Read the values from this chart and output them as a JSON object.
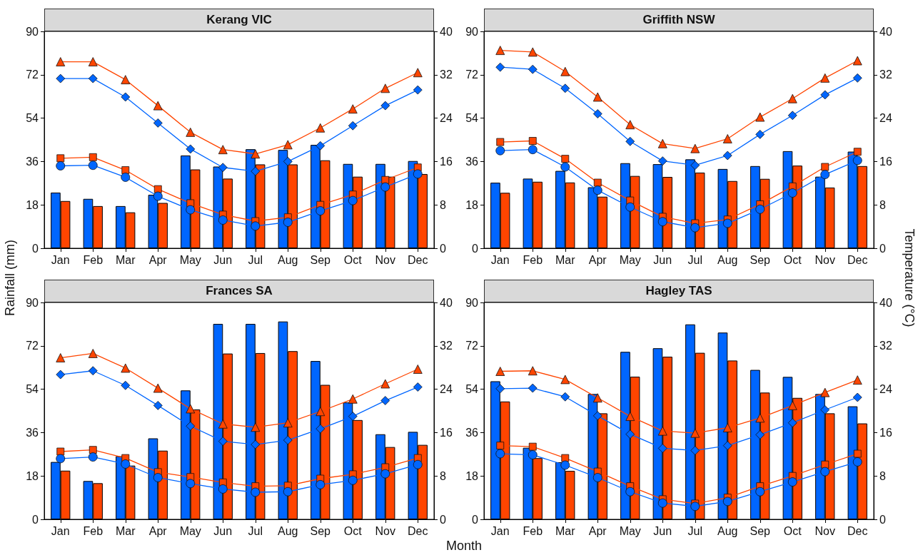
{
  "chart_data": [
    {
      "type": "bar",
      "title": "Kerang VIC",
      "ylabel": "Rainfall (mm)",
      "categories": [
        "Jan",
        "Feb",
        "Mar",
        "Apr",
        "May",
        "Jun",
        "Jul",
        "Aug",
        "Sep",
        "Oct",
        "Nov",
        "Dec"
      ],
      "ylim": [
        0,
        90
      ],
      "yticks": [
        0,
        18,
        36,
        54,
        72,
        90
      ],
      "y2lim": [
        0,
        40
      ],
      "y2ticks": [
        0,
        8,
        16,
        24,
        32,
        40
      ],
      "grid": false,
      "series": [
        {
          "color": "#0066ff",
          "values": [
            23.1,
            20.5,
            17.5,
            22.2,
            38.5,
            33.9,
            41.1,
            40.8,
            42.9,
            35.0,
            35.0,
            36.2
          ]
        },
        {
          "color": "#ff4500",
          "values": [
            19.6,
            17.5,
            14.9,
            18.8,
            32.7,
            28.9,
            34.8,
            34.8,
            36.5,
            29.7,
            29.7,
            30.8
          ]
        },
        {
          "type": "line",
          "axis": "y2",
          "marker": "triangle",
          "color": "#ff4500",
          "values": [
            34.4,
            34.4,
            31.1,
            26.3,
            21.4,
            18.2,
            17.4,
            19.1,
            22.2,
            25.7,
            29.5,
            32.4
          ]
        },
        {
          "type": "line",
          "axis": "y2",
          "marker": "diamond",
          "color": "#0066ff",
          "values": [
            31.3,
            31.3,
            27.9,
            23.1,
            18.3,
            14.9,
            14.2,
            16.0,
            18.9,
            22.6,
            26.3,
            29.2
          ]
        },
        {
          "type": "line",
          "axis": "y2",
          "marker": "square",
          "color": "#ff4500",
          "values": [
            16.6,
            16.8,
            14.4,
            10.9,
            8.3,
            6.2,
            5.0,
            5.7,
            8.0,
            9.9,
            12.6,
            14.9
          ]
        },
        {
          "type": "line",
          "axis": "y2",
          "marker": "circle",
          "color": "#0066ff",
          "values": [
            15.2,
            15.3,
            13.1,
            9.6,
            7.1,
            5.2,
            4.1,
            4.8,
            6.9,
            8.8,
            11.3,
            13.7
          ]
        }
      ]
    },
    {
      "type": "bar",
      "title": "Griffith NSW",
      "y2label": "Temperature (°C)",
      "categories": [
        "Jan",
        "Feb",
        "Mar",
        "Apr",
        "May",
        "Jun",
        "Jul",
        "Aug",
        "Sep",
        "Oct",
        "Nov",
        "Dec"
      ],
      "ylim": [
        0,
        90
      ],
      "yticks": [
        0,
        18,
        36,
        54,
        72,
        90
      ],
      "y2lim": [
        0,
        40
      ],
      "y2ticks": [
        0,
        8,
        16,
        24,
        32,
        40
      ],
      "grid": false,
      "series": [
        {
          "color": "#0066ff",
          "values": [
            27.2,
            28.9,
            32.1,
            25.3,
            35.3,
            34.9,
            36.9,
            32.9,
            34.1,
            40.3,
            29.7,
            40.1
          ]
        },
        {
          "color": "#ff4500",
          "values": [
            23.0,
            27.6,
            27.3,
            21.4,
            30.0,
            29.6,
            31.4,
            27.9,
            28.8,
            34.3,
            25.2,
            34.1
          ]
        },
        {
          "type": "line",
          "axis": "y2",
          "marker": "triangle",
          "color": "#ff4500",
          "values": [
            36.5,
            36.2,
            32.6,
            27.9,
            22.8,
            19.3,
            18.4,
            20.2,
            24.2,
            27.6,
            31.4,
            34.6
          ]
        },
        {
          "type": "line",
          "axis": "y2",
          "marker": "diamond",
          "color": "#0066ff",
          "values": [
            33.4,
            33.0,
            29.5,
            24.8,
            19.7,
            16.1,
            15.3,
            17.1,
            21.0,
            24.5,
            28.3,
            31.4
          ]
        },
        {
          "type": "line",
          "axis": "y2",
          "marker": "square",
          "color": "#ff4500",
          "values": [
            19.6,
            19.8,
            16.5,
            12.1,
            8.8,
            5.8,
            4.6,
            5.3,
            8.1,
            11.4,
            15.0,
            17.8
          ]
        },
        {
          "type": "line",
          "axis": "y2",
          "marker": "circle",
          "color": "#0066ff",
          "values": [
            18.0,
            18.2,
            15.0,
            10.7,
            7.6,
            4.9,
            3.8,
            4.6,
            7.2,
            10.2,
            13.6,
            16.2
          ]
        }
      ]
    },
    {
      "type": "bar",
      "title": "Frances SA",
      "xlabel": "Month",
      "categories": [
        "Jan",
        "Feb",
        "Mar",
        "Apr",
        "May",
        "Jun",
        "Jul",
        "Aug",
        "Sep",
        "Oct",
        "Nov",
        "Dec"
      ],
      "ylim": [
        0,
        90
      ],
      "yticks": [
        0,
        18,
        36,
        54,
        72,
        90
      ],
      "y2lim": [
        0,
        40
      ],
      "y2ticks": [
        0,
        8,
        16,
        24,
        32,
        40
      ],
      "grid": false,
      "series": [
        {
          "color": "#0066ff",
          "values": [
            23.8,
            15.9,
            26.2,
            33.6,
            53.5,
            81.1,
            81.1,
            82.1,
            65.7,
            48.5,
            35.3,
            36.3
          ]
        },
        {
          "color": "#ff4500",
          "values": [
            20.2,
            15.0,
            22.3,
            28.5,
            45.6,
            68.8,
            69.0,
            69.8,
            55.8,
            41.2,
            30.0,
            30.9
          ]
        },
        {
          "type": "line",
          "axis": "y2",
          "marker": "triangle",
          "color": "#ff4500",
          "values": [
            29.8,
            30.6,
            27.9,
            24.2,
            20.4,
            17.6,
            17.0,
            17.8,
            19.9,
            22.2,
            25.0,
            27.7
          ]
        },
        {
          "type": "line",
          "axis": "y2",
          "marker": "diamond",
          "color": "#0066ff",
          "values": [
            26.7,
            27.4,
            24.7,
            21.0,
            17.2,
            14.4,
            13.8,
            14.6,
            16.7,
            19.0,
            21.9,
            24.4
          ]
        },
        {
          "type": "line",
          "axis": "y2",
          "marker": "square",
          "color": "#ff4500",
          "values": [
            12.5,
            12.8,
            11.3,
            8.7,
            7.8,
            6.8,
            6.1,
            6.2,
            7.5,
            8.3,
            9.6,
            11.3
          ]
        },
        {
          "type": "line",
          "axis": "y2",
          "marker": "circle",
          "color": "#0066ff",
          "values": [
            11.2,
            11.5,
            10.2,
            7.7,
            6.6,
            5.6,
            5.0,
            5.1,
            6.4,
            7.2,
            8.4,
            10.1
          ]
        }
      ]
    },
    {
      "type": "bar",
      "title": "Hagley TAS",
      "categories": [
        "Jan",
        "Feb",
        "Mar",
        "Apr",
        "May",
        "Jun",
        "Jul",
        "Aug",
        "Sep",
        "Oct",
        "Nov",
        "Dec"
      ],
      "ylim": [
        0,
        90
      ],
      "yticks": [
        0,
        18,
        36,
        54,
        72,
        90
      ],
      "y2lim": [
        0,
        40
      ],
      "y2ticks": [
        0,
        8,
        16,
        24,
        32,
        40
      ],
      "grid": false,
      "series": [
        {
          "color": "#0066ff",
          "values": [
            57.3,
            29.7,
            23.7,
            52.0,
            69.5,
            71.0,
            80.9,
            77.5,
            62.0,
            59.1,
            52.0,
            46.9
          ]
        },
        {
          "color": "#ff4500",
          "values": [
            48.9,
            25.4,
            20.1,
            44.0,
            59.2,
            67.5,
            69.1,
            65.9,
            52.6,
            50.4,
            44.0,
            39.8
          ]
        },
        {
          "type": "line",
          "axis": "y2",
          "marker": "triangle",
          "color": "#ff4500",
          "values": [
            27.3,
            27.4,
            25.8,
            22.4,
            19.0,
            16.3,
            15.9,
            16.9,
            18.7,
            21.0,
            23.4,
            25.7
          ]
        },
        {
          "type": "line",
          "axis": "y2",
          "marker": "diamond",
          "color": "#0066ff",
          "values": [
            24.1,
            24.2,
            22.6,
            19.1,
            15.7,
            13.1,
            12.7,
            13.6,
            15.6,
            17.8,
            20.2,
            22.5
          ]
        },
        {
          "type": "line",
          "axis": "y2",
          "marker": "square",
          "color": "#ff4500",
          "values": [
            13.6,
            13.4,
            11.3,
            8.8,
            6.1,
            3.7,
            2.9,
            4.0,
            6.1,
            8.0,
            10.1,
            12.1
          ]
        },
        {
          "type": "line",
          "axis": "y2",
          "marker": "circle",
          "color": "#0066ff",
          "values": [
            12.1,
            11.9,
            10.0,
            7.7,
            5.1,
            3.0,
            2.4,
            3.3,
            5.1,
            6.9,
            8.8,
            10.6
          ]
        }
      ]
    }
  ]
}
